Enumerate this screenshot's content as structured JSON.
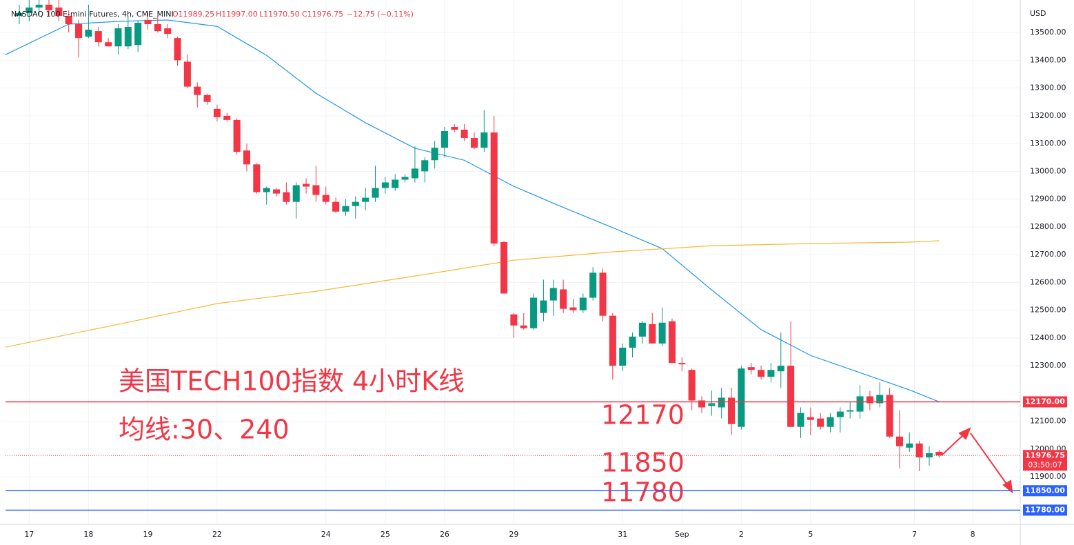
{
  "chart_data": {
    "type": "candlestick",
    "title": "NASDAQ 100 E-mini Futures, 4h, CME_MINI",
    "ohlc_header": {
      "open": "O11989.25",
      "high": "H11997.00",
      "low": "L11970.50",
      "close": "C11976.75",
      "change": "−12.75 (−0.11%)"
    },
    "currency": "USD",
    "annotations": [
      "美国TECH100指数 4小时K线",
      "均线:30、240",
      "12170",
      "11850",
      "11780"
    ],
    "up_color": "#089981",
    "down_color": "#f23645",
    "candles": [
      [
        13560,
        13600,
        13530,
        13570
      ],
      [
        13570,
        13620,
        13540,
        13590
      ],
      [
        13590,
        13640,
        13560,
        13600
      ],
      [
        13600,
        13630,
        13560,
        13580
      ],
      [
        13590,
        13620,
        13540,
        13560
      ],
      [
        13560,
        13580,
        13500,
        13530
      ],
      [
        13530,
        13545,
        13410,
        13480
      ],
      [
        13485,
        13600,
        13480,
        13510
      ],
      [
        13505,
        13520,
        13450,
        13465
      ],
      [
        13465,
        13480,
        13450,
        13450
      ],
      [
        13450,
        13530,
        13420,
        13515
      ],
      [
        13450,
        13560,
        13440,
        13520
      ],
      [
        13455,
        13540,
        13430,
        13535
      ],
      [
        13545,
        13570,
        13510,
        13530
      ],
      [
        13530,
        13560,
        13500,
        13505
      ],
      [
        13515,
        13530,
        13480,
        13495
      ],
      [
        13480,
        13485,
        13380,
        13400
      ],
      [
        13395,
        13420,
        13300,
        13305
      ],
      [
        13305,
        13320,
        13230,
        13275
      ],
      [
        13275,
        13280,
        13240,
        13250
      ],
      [
        13225,
        13240,
        13180,
        13195
      ],
      [
        13200,
        13210,
        13180,
        13185
      ],
      [
        13185,
        13190,
        13060,
        13070
      ],
      [
        13075,
        13100,
        13000,
        13025
      ],
      [
        13025,
        13030,
        12920,
        12925
      ],
      [
        12925,
        12945,
        12880,
        12940
      ],
      [
        12935,
        12940,
        12910,
        12920
      ],
      [
        12925,
        12960,
        12880,
        12890
      ],
      [
        12890,
        12960,
        12830,
        12950
      ],
      [
        12955,
        12975,
        12920,
        12945
      ],
      [
        12950,
        13020,
        12890,
        12915
      ],
      [
        12915,
        12945,
        12880,
        12890
      ],
      [
        12890,
        12905,
        12850,
        12855
      ],
      [
        12855,
        12900,
        12840,
        12875
      ],
      [
        12875,
        12910,
        12830,
        12890
      ],
      [
        12890,
        12940,
        12860,
        12905
      ],
      [
        12905,
        13020,
        12890,
        12940
      ],
      [
        12940,
        12980,
        12920,
        12960
      ],
      [
        12940,
        12990,
        12930,
        12970
      ],
      [
        12970,
        12990,
        12960,
        12980
      ],
      [
        12975,
        13090,
        12960,
        13010
      ],
      [
        13000,
        13050,
        12960,
        13040
      ],
      [
        13040,
        13110,
        13010,
        13085
      ],
      [
        13085,
        13160,
        13050,
        13145
      ],
      [
        13160,
        13170,
        13140,
        13150
      ],
      [
        13150,
        13170,
        13110,
        13120
      ],
      [
        13120,
        13140,
        13080,
        13085
      ],
      [
        13085,
        13220,
        13070,
        13140
      ],
      [
        13140,
        13200,
        12730,
        12740
      ],
      [
        12745,
        12750,
        12560,
        12560
      ],
      [
        12485,
        12490,
        12400,
        12445
      ],
      [
        12445,
        12490,
        12430,
        12435
      ],
      [
        12435,
        12560,
        12430,
        12545
      ],
      [
        12490,
        12610,
        12460,
        12535
      ],
      [
        12535,
        12610,
        12480,
        12580
      ],
      [
        12575,
        12610,
        12490,
        12505
      ],
      [
        12510,
        12540,
        12490,
        12500
      ],
      [
        12500,
        12560,
        12490,
        12545
      ],
      [
        12545,
        12655,
        12535,
        12635
      ],
      [
        12635,
        12650,
        12460,
        12480
      ],
      [
        12480,
        12490,
        12250,
        12300
      ],
      [
        12300,
        12380,
        12280,
        12365
      ],
      [
        12365,
        12420,
        12330,
        12405
      ],
      [
        12405,
        12460,
        12380,
        12455
      ],
      [
        12450,
        12490,
        12380,
        12380
      ],
      [
        12380,
        12510,
        12370,
        12455
      ],
      [
        12460,
        12470,
        12310,
        12310
      ],
      [
        12310,
        12330,
        12280,
        12305
      ],
      [
        12285,
        12290,
        12140,
        12175
      ],
      [
        12175,
        12190,
        12130,
        12150
      ],
      [
        12155,
        12210,
        12120,
        12165
      ],
      [
        12150,
        12220,
        12110,
        12185
      ],
      [
        12185,
        12220,
        12050,
        12090
      ],
      [
        12080,
        12300,
        12070,
        12290
      ],
      [
        12295,
        12310,
        12270,
        12285
      ],
      [
        12285,
        12300,
        12250,
        12260
      ],
      [
        12260,
        12310,
        12240,
        12285
      ],
      [
        12280,
        12420,
        12220,
        12300
      ],
      [
        12300,
        12460,
        12080,
        12080
      ],
      [
        12080,
        12150,
        12040,
        12130
      ],
      [
        12115,
        12150,
        12050,
        12105
      ],
      [
        12110,
        12130,
        12070,
        12080
      ],
      [
        12080,
        12130,
        12060,
        12115
      ],
      [
        12115,
        12150,
        12060,
        12135
      ],
      [
        12135,
        12170,
        12110,
        12140
      ],
      [
        12135,
        12230,
        12110,
        12190
      ],
      [
        12190,
        12210,
        12140,
        12165
      ],
      [
        12165,
        12240,
        12150,
        12195
      ],
      [
        12195,
        12220,
        12040,
        12045
      ],
      [
        12045,
        12140,
        11930,
        12010
      ],
      [
        12005,
        12060,
        11990,
        12020
      ],
      [
        12020,
        12030,
        11920,
        11970
      ],
      [
        11970,
        12010,
        11940,
        11985
      ],
      [
        11990,
        11997,
        11970,
        11977
      ]
    ],
    "series": [
      {
        "color": "#2196f3",
        "x": [
          -1.4,
          5,
          10,
          15,
          20,
          25,
          30,
          35,
          40,
          45,
          50,
          55,
          60,
          65,
          70,
          75,
          80,
          85,
          90,
          93
        ],
        "values": [
          13420,
          13530,
          13540,
          13545,
          13522,
          13418,
          13281,
          13175,
          13083,
          13040,
          12946,
          12870,
          12797,
          12722,
          12573,
          12430,
          12337,
          12275,
          12213,
          12170
        ]
      },
      {
        "color": "#f7b733",
        "x": [
          -1.4,
          10,
          20,
          30,
          40,
          50,
          60,
          70,
          80,
          90,
          93
        ],
        "values": [
          12367,
          12449,
          12524,
          12568,
          12623,
          12680,
          12710,
          12732,
          12740,
          12745,
          12750
        ]
      }
    ],
    "levels": [
      {
        "value": 12170,
        "label": "12170.00",
        "color": "#f23645"
      },
      {
        "value": 11850,
        "label": "11850.00",
        "color": "#2962ff"
      },
      {
        "value": 11780,
        "label": "11780.00",
        "color": "#2962ff"
      }
    ],
    "last": {
      "value": 11976.75,
      "label": "11976.75",
      "countdown": "03:50:07"
    },
    "xlim": [
      -1.95,
      101.2
    ],
    "ylim": [
      11729,
      13617
    ],
    "xticks": [
      {
        "value": 1,
        "label": "17"
      },
      {
        "value": 7,
        "label": "18"
      },
      {
        "value": 13,
        "label": "19"
      },
      {
        "value": 20,
        "label": "22"
      },
      {
        "value": 31,
        "label": "24"
      },
      {
        "value": 37,
        "label": "25"
      },
      {
        "value": 43,
        "label": "26"
      },
      {
        "value": 50,
        "label": "29"
      },
      {
        "value": 61,
        "label": "31"
      },
      {
        "value": 67,
        "label": "Sep"
      },
      {
        "value": 73,
        "label": "2"
      },
      {
        "value": 80,
        "label": "5"
      },
      {
        "value": 90.5,
        "label": "7"
      },
      {
        "value": 96.4,
        "label": "8"
      }
    ],
    "yticks": [
      {
        "value": 11900,
        "label": "11900.00"
      },
      {
        "value": 12000,
        "label": "12000.00"
      },
      {
        "value": 12100,
        "label": "12100.00"
      },
      {
        "value": 12300,
        "label": "12300.00"
      },
      {
        "value": 12400,
        "label": "12400.00"
      },
      {
        "value": 12500,
        "label": "12500.00"
      },
      {
        "value": 12600,
        "label": "12600.00"
      },
      {
        "value": 12700,
        "label": "12700.00"
      },
      {
        "value": 12800,
        "label": "12800.00"
      },
      {
        "value": 12900,
        "label": "12900.00"
      },
      {
        "value": 13000,
        "label": "13000.00"
      },
      {
        "value": 13100,
        "label": "13100.00"
      },
      {
        "value": 13200,
        "label": "13200.00"
      },
      {
        "value": 13300,
        "label": "13300.00"
      },
      {
        "value": 13400,
        "label": "13400.00"
      },
      {
        "value": 13500,
        "label": "13500.00"
      }
    ],
    "grid": true
  }
}
